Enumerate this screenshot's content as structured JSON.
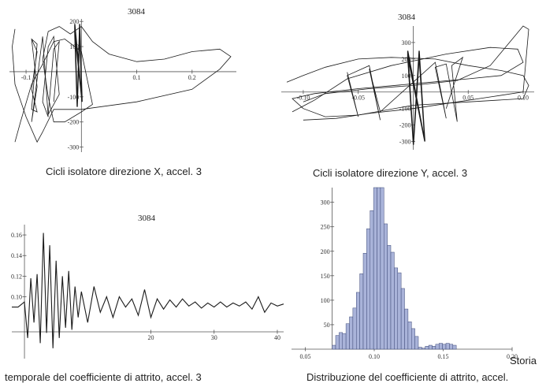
{
  "captions": {
    "top_left": "Cicli isolatore direzione X, accel. 3",
    "top_right": "Cicli isolatore direzione Y, accel. 3",
    "bottom_left": "temporale del coefficiente di attrito, accel. 3",
    "bottom_right": "Distribuzione del coefficiente di attrito, accel.",
    "bottom_right_extra": "Storia"
  },
  "colors": {
    "line": "#1a1a1a",
    "bar_fill": "#a9b3d9",
    "bar_stroke": "#3e4a78"
  },
  "chart_data": [
    {
      "id": "hyst_x",
      "type": "line",
      "title": "3084",
      "xlim": [
        -0.13,
        0.28
      ],
      "ylim": [
        -320,
        210
      ],
      "xticks": [
        -0.1,
        0.1,
        0.2
      ],
      "xtick_labels": [
        "-0.1",
        "0.1",
        "0.2"
      ],
      "yticks": [
        200,
        100,
        -100,
        -200,
        -300
      ],
      "ytick_labels": [
        "200",
        "100",
        "-100",
        "-200",
        "-300"
      ],
      "grid": false,
      "series": [
        {
          "x": [
            -0.12,
            -0.125,
            -0.12,
            -0.1,
            -0.08,
            -0.07,
            -0.05,
            0,
            0.1,
            0.2,
            0.25,
            0.27,
            0.25,
            0.2,
            0.15,
            0.1,
            0.05,
            0.02,
            0.0,
            -0.02,
            -0.04,
            -0.06,
            -0.07,
            -0.06,
            -0.05,
            -0.03,
            0,
            0.02,
            0.0,
            -0.03,
            -0.05,
            -0.07,
            -0.09,
            -0.11,
            -0.12
          ],
          "y": [
            170,
            100,
            -50,
            -180,
            -280,
            -240,
            -150,
            -150,
            -120,
            -70,
            10,
            60,
            90,
            80,
            50,
            40,
            70,
            120,
            180,
            150,
            180,
            160,
            50,
            -100,
            -200,
            -200,
            -160,
            -130,
            80,
            130,
            120,
            30,
            -50,
            -200,
            -280
          ]
        },
        {
          "x": [
            -0.09,
            -0.08,
            -0.09,
            -0.08,
            -0.09,
            -0.08,
            -0.09,
            -0.08,
            -0.09,
            -0.07,
            -0.06,
            -0.07,
            -0.06,
            -0.05,
            -0.04,
            -0.06,
            -0.05,
            -0.04,
            -0.05
          ],
          "y": [
            130,
            80,
            -70,
            -160,
            -150,
            110,
            130,
            -60,
            -200,
            140,
            -180,
            -120,
            100,
            140,
            -90,
            -170,
            90,
            120,
            -120
          ]
        }
      ],
      "dense_band": {
        "x_range": [
          -0.012,
          0.005
        ],
        "y_range": [
          -150,
          190
        ]
      }
    },
    {
      "id": "hyst_y",
      "type": "line",
      "title": "3084",
      "xlim": [
        -0.12,
        0.11
      ],
      "ylim": [
        -350,
        400
      ],
      "xticks": [
        -0.1,
        -0.05,
        0.05,
        0.1
      ],
      "xtick_labels": [
        "-0.10",
        "-0.05",
        "0.05",
        "0.10"
      ],
      "yticks": [
        300,
        200,
        100,
        -100,
        -200,
        -300
      ],
      "ytick_labels": [
        "300",
        "200",
        "100",
        "-100",
        "-200",
        "-300"
      ],
      "grid": false,
      "series": [
        {
          "x": [
            -0.115,
            -0.1,
            -0.08,
            -0.05,
            -0.02,
            0.02,
            0.05,
            0.08,
            0.1,
            0.105,
            0.1,
            0.05,
            0,
            -0.05,
            -0.08,
            -0.1,
            -0.11,
            -0.09,
            -0.05,
            0,
            0.05,
            0.08,
            0.1,
            0.095,
            0.07,
            0.03,
            -0.02,
            -0.06,
            -0.09,
            -0.11
          ],
          "y": [
            60,
            100,
            150,
            200,
            210,
            200,
            160,
            130,
            100,
            40,
            -40,
            -60,
            -80,
            -140,
            -150,
            -100,
            -40,
            -10,
            20,
            50,
            80,
            100,
            180,
            260,
            270,
            230,
            160,
            80,
            -50,
            -120
          ]
        },
        {
          "x": [
            -0.1,
            -0.07,
            -0.04,
            0,
            0.04,
            0.07,
            0.1,
            0.105,
            0.1,
            0.07,
            0.04,
            0,
            -0.04,
            -0.08,
            -0.1
          ],
          "y": [
            -170,
            -160,
            -130,
            -100,
            -60,
            -30,
            0,
            380,
            400,
            160,
            70,
            40,
            20,
            -10,
            -60
          ]
        },
        {
          "x": [
            -0.06,
            -0.05,
            -0.06,
            -0.04,
            -0.03,
            -0.04,
            -0.03,
            0.02,
            0.03,
            0.02,
            0.03,
            0.04,
            0.035,
            0.045,
            0.03
          ],
          "y": [
            120,
            -150,
            100,
            160,
            -170,
            140,
            -120,
            180,
            -160,
            150,
            170,
            -180,
            160,
            210,
            -100
          ]
        }
      ],
      "dense_band": {
        "x_range": [
          -0.005,
          0.015
        ],
        "y_range": [
          -330,
          250
        ]
      }
    },
    {
      "id": "friction_history",
      "type": "line",
      "title": "3084",
      "xlim": [
        -2,
        41
      ],
      "ylim": [
        0.04,
        0.17
      ],
      "xticks": [
        20,
        30,
        40
      ],
      "xtick_labels": [
        "20",
        "30",
        "40"
      ],
      "yticks": [
        0.16,
        0.14,
        0.12,
        0.1
      ],
      "ytick_labels": [
        "0.16",
        "0.14",
        "0.12",
        "0.10"
      ],
      "grid": false,
      "series": [
        {
          "x": [
            -2,
            -1,
            0,
            0.5,
            1,
            1.5,
            2,
            2.5,
            3,
            3.5,
            4,
            4.5,
            5,
            5.5,
            6,
            6.5,
            7,
            7.5,
            8,
            8.5,
            9,
            10,
            11,
            12,
            13,
            14,
            15,
            16,
            17,
            18,
            19,
            20,
            21,
            22,
            23,
            24,
            25,
            26,
            27,
            28,
            29,
            30,
            31,
            32,
            33,
            34,
            35,
            36,
            37,
            38,
            39,
            40,
            41
          ],
          "y": [
            0.09,
            0.09,
            0.095,
            0.06,
            0.118,
            0.075,
            0.122,
            0.055,
            0.162,
            0.065,
            0.15,
            0.05,
            0.135,
            0.06,
            0.12,
            0.07,
            0.125,
            0.068,
            0.11,
            0.08,
            0.105,
            0.075,
            0.11,
            0.085,
            0.1,
            0.08,
            0.1,
            0.09,
            0.098,
            0.082,
            0.107,
            0.08,
            0.098,
            0.088,
            0.097,
            0.09,
            0.098,
            0.091,
            0.095,
            0.089,
            0.094,
            0.09,
            0.095,
            0.09,
            0.094,
            0.091,
            0.095,
            0.088,
            0.1,
            0.085,
            0.094,
            0.091,
            0.093
          ]
        }
      ]
    },
    {
      "id": "friction_histogram",
      "type": "bar",
      "xlim": [
        0.04,
        0.2
      ],
      "ylim": [
        0,
        330
      ],
      "xticks": [
        0.05,
        0.1,
        0.15,
        0.2
      ],
      "xtick_labels": [
        "0.05",
        "0.10",
        "0.15",
        "0.20"
      ],
      "yticks": [
        300,
        250,
        200,
        150,
        100,
        50
      ],
      "ytick_labels": [
        "300",
        "250",
        "200",
        "150",
        "100",
        "50"
      ],
      "grid": false,
      "bin_start": 0.0695,
      "bin_width": 0.0025,
      "values": [
        8,
        28,
        34,
        32,
        52,
        66,
        84,
        116,
        154,
        196,
        246,
        283,
        330,
        330,
        330,
        256,
        212,
        198,
        166,
        156,
        124,
        82,
        56,
        42,
        26,
        4,
        2,
        6,
        8,
        6,
        10,
        12,
        10,
        12,
        10,
        8
      ]
    }
  ]
}
